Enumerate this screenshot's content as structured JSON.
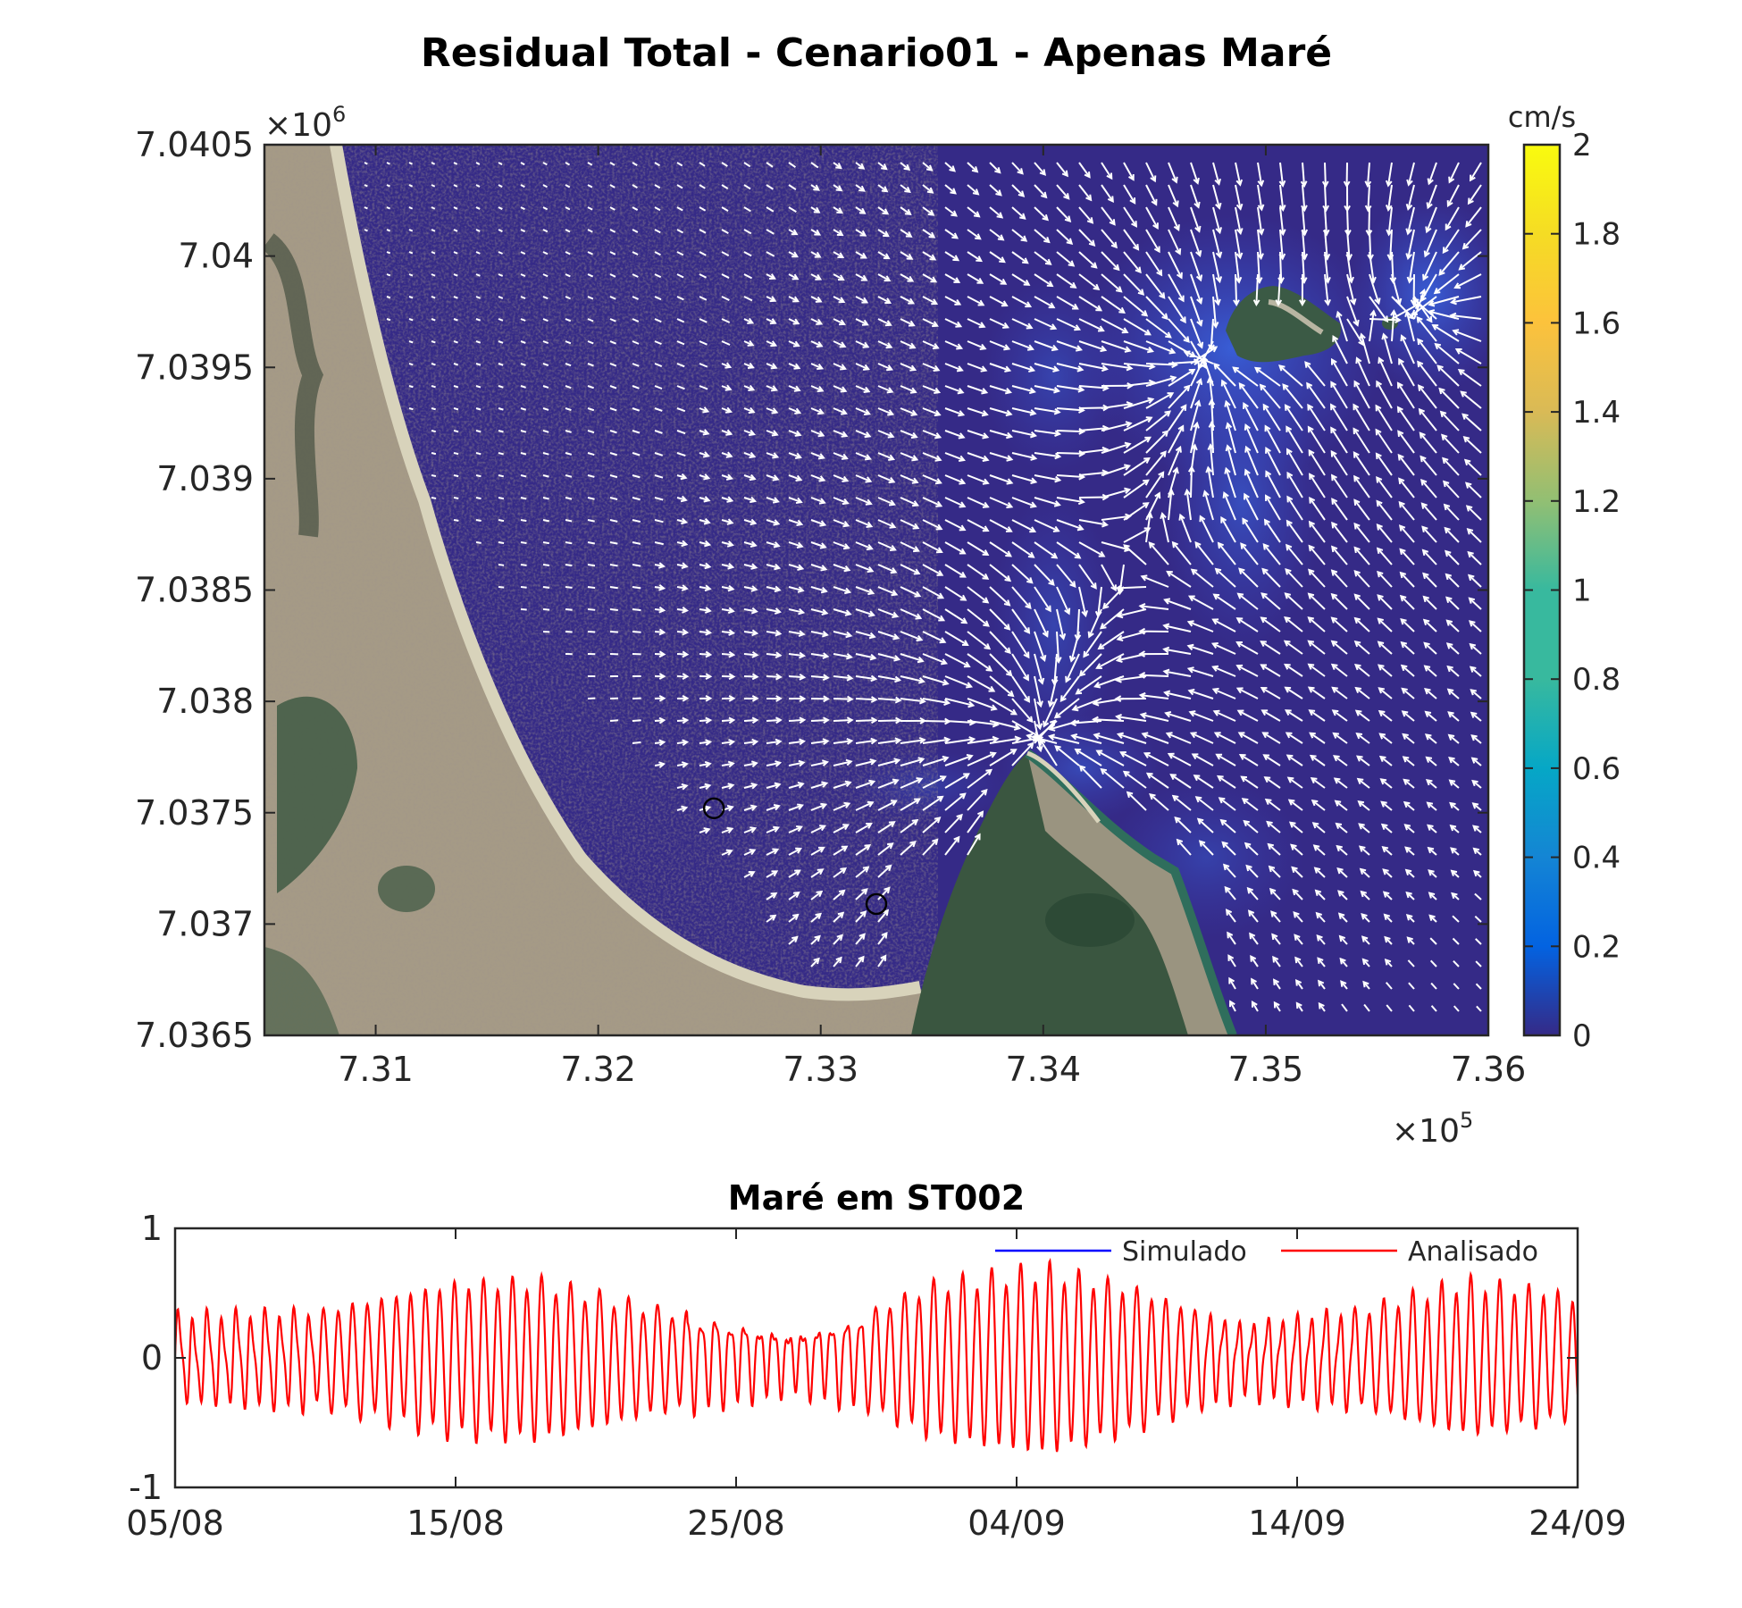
{
  "chart_data": [
    {
      "type": "heatmap",
      "title": "Residual Total - Cenario01 - Apenas Maré",
      "x_multiplier": "×10",
      "x_exponent": "5",
      "y_multiplier": "×10",
      "y_exponent": "6",
      "xlim": [
        7.305,
        7.36
      ],
      "ylim": [
        7.0365,
        7.0405
      ],
      "x_ticks": [
        7.31,
        7.32,
        7.33,
        7.34,
        7.35,
        7.36
      ],
      "x_tick_labels": [
        "7.31",
        "7.32",
        "7.33",
        "7.34",
        "7.35",
        "7.36"
      ],
      "y_ticks": [
        7.0365,
        7.037,
        7.0375,
        7.038,
        7.0385,
        7.039,
        7.0395,
        7.04,
        7.0405
      ],
      "y_tick_labels": [
        "7.0365",
        "7.037",
        "7.0375",
        "7.038",
        "7.0385",
        "7.039",
        "7.0395",
        "7.04",
        "7.0405"
      ],
      "colorbar": {
        "label": "cm/s",
        "colormap": "parula",
        "range": [
          0,
          2
        ],
        "ticks": [
          0,
          0.2,
          0.4,
          0.6,
          0.8,
          1,
          1.2,
          1.4,
          1.6,
          1.8,
          2
        ],
        "tick_labels": [
          "0",
          "0.2",
          "0.4",
          "0.6",
          "0.8",
          "1",
          "1.2",
          "1.4",
          "1.6",
          "1.8",
          "2"
        ]
      },
      "markers": [
        {
          "x": 7.3252,
          "y": 7.03752,
          "shape": "circle"
        },
        {
          "x": 7.3325,
          "y": 7.03709,
          "shape": "circle"
        }
      ],
      "colors": {
        "water": "#352a87",
        "land": "#a59a86",
        "vegetation": "#3a5640",
        "beach": "#d8d3bb",
        "vectors": "#ffffff"
      }
    },
    {
      "type": "line",
      "title": "Maré em ST002",
      "x_range": [
        "05/08",
        "24/09"
      ],
      "x_tick_labels": [
        "05/08",
        "15/08",
        "25/08",
        "04/09",
        "14/09",
        "24/09"
      ],
      "ylim": [
        -1,
        1
      ],
      "y_ticks": [
        -1,
        0,
        1
      ],
      "y_tick_labels": [
        "-1",
        "0",
        "1"
      ],
      "legend_position": "top-right",
      "series": [
        {
          "name": "Simulado",
          "color": "#0000ff"
        },
        {
          "name": "Analisado",
          "color": "#ff0000",
          "x_day_start": "05/08",
          "x_day_end": "24/09",
          "envelope": [
            [
              0,
              0.3
            ],
            [
              5,
              0.35
            ],
            [
              10,
              0.58
            ],
            [
              13,
              0.6
            ],
            [
              17,
              0.4
            ],
            [
              22,
              0.2
            ],
            [
              24,
              0.3
            ],
            [
              27,
              0.58
            ],
            [
              31,
              0.7
            ],
            [
              34,
              0.55
            ],
            [
              38,
              0.25
            ],
            [
              42,
              0.35
            ],
            [
              46,
              0.58
            ],
            [
              49,
              0.5
            ],
            [
              53,
              0.22
            ],
            [
              58,
              0.45
            ]
          ]
        }
      ]
    }
  ]
}
